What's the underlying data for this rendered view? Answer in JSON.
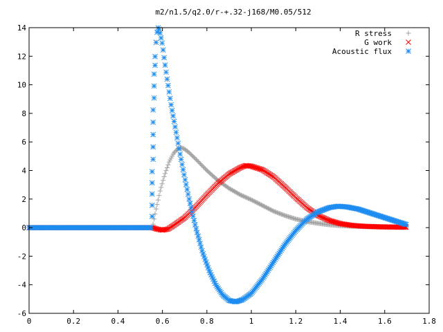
{
  "chart_data": {
    "type": "scatter",
    "title": "m2/n1.5/q2.0/r-+.32-j168/M0.05/512",
    "xlabel": "",
    "ylabel": "",
    "xlim": [
      0,
      1.8
    ],
    "ylim": [
      -6,
      14
    ],
    "xticks": [
      "0",
      "0.2",
      "0.4",
      "0.6",
      "0.8",
      "1",
      "1.2",
      "1.4",
      "1.6",
      "1.8"
    ],
    "yticks": [
      "-6",
      "-4",
      "-2",
      "0",
      "2",
      "4",
      "6",
      "8",
      "10",
      "12",
      "14"
    ],
    "grid": false,
    "legend_position": "top-right",
    "series": [
      {
        "name": "R stress",
        "marker": "plus",
        "color": "#a0a0a0",
        "points": [
          [
            0.0,
            0.0
          ],
          [
            0.1,
            0.0
          ],
          [
            0.2,
            0.0
          ],
          [
            0.3,
            0.0
          ],
          [
            0.4,
            0.0
          ],
          [
            0.5,
            0.0
          ],
          [
            0.54,
            0.0
          ],
          [
            0.555,
            0.0
          ],
          [
            0.57,
            1.2
          ],
          [
            0.59,
            2.6
          ],
          [
            0.61,
            3.7
          ],
          [
            0.63,
            4.6
          ],
          [
            0.65,
            5.2
          ],
          [
            0.67,
            5.55
          ],
          [
            0.685,
            5.6
          ],
          [
            0.7,
            5.5
          ],
          [
            0.72,
            5.25
          ],
          [
            0.75,
            4.8
          ],
          [
            0.8,
            4.0
          ],
          [
            0.85,
            3.3
          ],
          [
            0.9,
            2.75
          ],
          [
            0.95,
            2.3
          ],
          [
            1.0,
            1.95
          ],
          [
            1.05,
            1.55
          ],
          [
            1.1,
            1.15
          ],
          [
            1.15,
            0.85
          ],
          [
            1.2,
            0.6
          ],
          [
            1.25,
            0.42
          ],
          [
            1.3,
            0.3
          ],
          [
            1.35,
            0.2
          ],
          [
            1.4,
            0.14
          ],
          [
            1.45,
            0.1
          ],
          [
            1.5,
            0.07
          ],
          [
            1.55,
            0.05
          ],
          [
            1.6,
            0.03
          ],
          [
            1.65,
            0.02
          ],
          [
            1.7,
            0.01
          ]
        ]
      },
      {
        "name": "G work",
        "marker": "cross",
        "color": "#ff0000",
        "points": [
          [
            0.0,
            0.0
          ],
          [
            0.1,
            0.0
          ],
          [
            0.2,
            0.0
          ],
          [
            0.3,
            0.0
          ],
          [
            0.4,
            0.0
          ],
          [
            0.5,
            0.0
          ],
          [
            0.555,
            0.0
          ],
          [
            0.575,
            -0.1
          ],
          [
            0.6,
            -0.18
          ],
          [
            0.625,
            -0.1
          ],
          [
            0.65,
            0.15
          ],
          [
            0.7,
            0.7
          ],
          [
            0.75,
            1.45
          ],
          [
            0.8,
            2.3
          ],
          [
            0.85,
            3.1
          ],
          [
            0.9,
            3.75
          ],
          [
            0.95,
            4.2
          ],
          [
            0.975,
            4.35
          ],
          [
            1.0,
            4.3
          ],
          [
            1.05,
            4.05
          ],
          [
            1.1,
            3.55
          ],
          [
            1.15,
            2.85
          ],
          [
            1.2,
            2.1
          ],
          [
            1.25,
            1.4
          ],
          [
            1.3,
            0.85
          ],
          [
            1.35,
            0.5
          ],
          [
            1.4,
            0.28
          ],
          [
            1.45,
            0.16
          ],
          [
            1.5,
            0.1
          ],
          [
            1.55,
            0.07
          ],
          [
            1.6,
            0.05
          ],
          [
            1.65,
            0.04
          ],
          [
            1.7,
            0.03
          ]
        ]
      },
      {
        "name": "Acoustic flux",
        "marker": "star",
        "color": "#1e8cf0",
        "points": [
          [
            0.0,
            0.0
          ],
          [
            0.1,
            0.0
          ],
          [
            0.2,
            0.0
          ],
          [
            0.3,
            0.0
          ],
          [
            0.4,
            0.0
          ],
          [
            0.5,
            0.0
          ],
          [
            0.55,
            0.0
          ],
          [
            0.555,
            5.6
          ],
          [
            0.56,
            10.0
          ],
          [
            0.565,
            11.5
          ],
          [
            0.57,
            12.7
          ],
          [
            0.575,
            13.6
          ],
          [
            0.58,
            14.0
          ],
          [
            0.585,
            13.9
          ],
          [
            0.59,
            13.6
          ],
          [
            0.6,
            12.8
          ],
          [
            0.61,
            11.6
          ],
          [
            0.62,
            10.5
          ],
          [
            0.64,
            8.5
          ],
          [
            0.66,
            6.8
          ],
          [
            0.68,
            5.1
          ],
          [
            0.7,
            3.5
          ],
          [
            0.72,
            2.0
          ],
          [
            0.75,
            0.0
          ],
          [
            0.78,
            -1.7
          ],
          [
            0.81,
            -3.0
          ],
          [
            0.84,
            -4.0
          ],
          [
            0.87,
            -4.7
          ],
          [
            0.9,
            -5.1
          ],
          [
            0.93,
            -5.2
          ],
          [
            0.96,
            -5.05
          ],
          [
            1.0,
            -4.6
          ],
          [
            1.05,
            -3.6
          ],
          [
            1.1,
            -2.4
          ],
          [
            1.15,
            -1.2
          ],
          [
            1.2,
            -0.2
          ],
          [
            1.25,
            0.6
          ],
          [
            1.3,
            1.1
          ],
          [
            1.35,
            1.4
          ],
          [
            1.39,
            1.5
          ],
          [
            1.43,
            1.45
          ],
          [
            1.48,
            1.3
          ],
          [
            1.53,
            1.05
          ],
          [
            1.58,
            0.8
          ],
          [
            1.63,
            0.55
          ],
          [
            1.67,
            0.35
          ],
          [
            1.7,
            0.2
          ]
        ]
      }
    ]
  }
}
